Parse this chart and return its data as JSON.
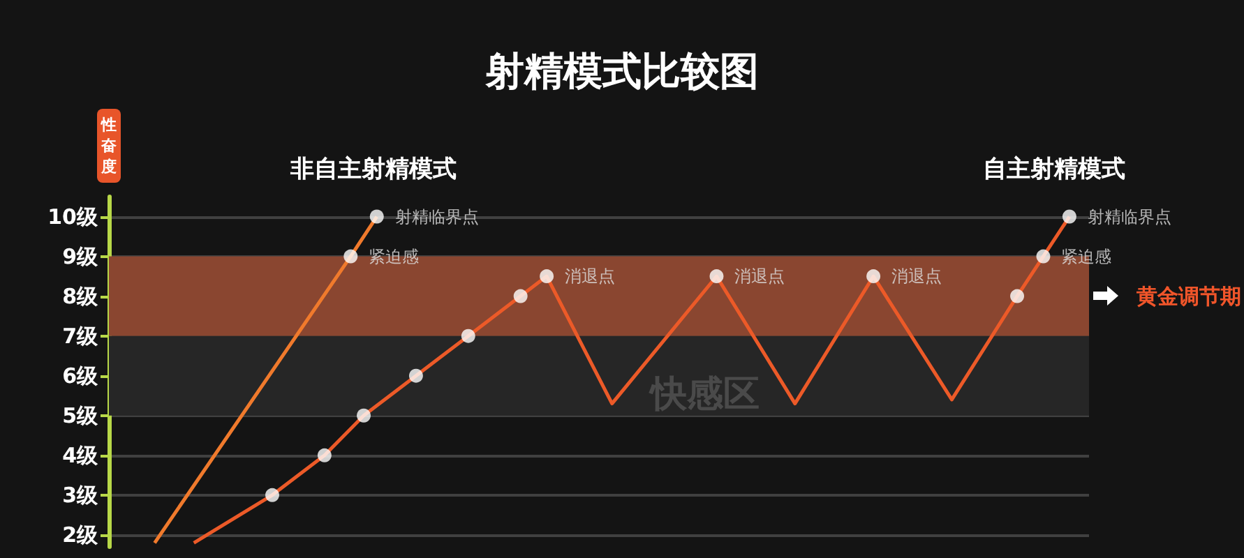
{
  "chart_data": {
    "type": "line",
    "title": "射精模式比较图",
    "ylabel": "性奋度",
    "categories": [
      null,
      null,
      null,
      null,
      null,
      null,
      null,
      null,
      null,
      null,
      null,
      null,
      null,
      null,
      null,
      null,
      null,
      null,
      null,
      null,
      null,
      null,
      null,
      null,
      null,
      null,
      null,
      null,
      null,
      null,
      null,
      null,
      null,
      null,
      null,
      null,
      null,
      null,
      null,
      null,
      null,
      null,
      null,
      null,
      null,
      null,
      null,
      null,
      null,
      null,
      null,
      null,
      null,
      null,
      null,
      null,
      null,
      null,
      null,
      null,
      null,
      null,
      null,
      null,
      null,
      null,
      null,
      null,
      null,
      null,
      null,
      null,
      null,
      null,
      null
    ],
    "series": [
      {
        "name": "非自主射精模式",
        "color": "#f07a2c",
        "values": [
          null,
          null,
          null,
          1.8,
          null,
          null,
          null,
          null,
          null,
          null,
          null,
          null,
          null,
          null,
          null,
          null,
          null,
          null,
          9,
          null,
          10,
          null,
          null,
          null,
          null,
          null,
          null,
          null,
          null,
          null,
          null,
          null,
          null,
          null,
          null,
          null,
          null,
          null,
          null,
          null,
          null,
          null,
          null,
          null,
          null,
          null,
          null,
          null,
          null,
          null,
          null,
          null,
          null,
          null,
          null,
          null,
          null,
          null,
          null,
          null,
          null,
          null,
          null,
          null,
          null,
          null,
          null,
          null,
          null,
          null,
          null,
          null,
          null,
          null,
          null
        ]
      },
      {
        "name": "自主射精模式",
        "color": "#ec5a28",
        "values": [
          null,
          null,
          null,
          null,
          null,
          null,
          1.8,
          null,
          null,
          null,
          null,
          null,
          3,
          null,
          null,
          null,
          4,
          null,
          null,
          5,
          null,
          null,
          null,
          6,
          null,
          null,
          null,
          7,
          null,
          null,
          null,
          8,
          null,
          8.5,
          null,
          null,
          null,
          null,
          5.3,
          null,
          null,
          null,
          null,
          null,
          null,
          null,
          8.5,
          null,
          null,
          null,
          null,
          null,
          5.3,
          null,
          null,
          null,
          null,
          null,
          8.5,
          null,
          null,
          null,
          null,
          null,
          5.4,
          null,
          null,
          null,
          null,
          8,
          null,
          9,
          null,
          10,
          null
        ]
      },
      {
        "type": "scatter",
        "color": "#ffffff",
        "values": [
          null,
          null,
          null,
          null,
          null,
          null,
          null,
          null,
          null,
          null,
          null,
          null,
          3,
          null,
          null,
          null,
          4,
          null,
          9,
          5,
          10,
          null,
          null,
          6,
          null,
          null,
          null,
          7,
          null,
          null,
          null,
          8,
          null,
          8.5,
          null,
          null,
          null,
          null,
          null,
          null,
          null,
          null,
          null,
          null,
          null,
          null,
          8.5,
          null,
          null,
          null,
          null,
          null,
          null,
          null,
          null,
          null,
          null,
          null,
          8.5,
          null,
          null,
          null,
          null,
          null,
          null,
          null,
          null,
          null,
          null,
          8,
          null,
          9,
          null,
          10,
          null
        ],
        "value_labels": [
          null,
          null,
          null,
          null,
          null,
          null,
          null,
          null,
          null,
          null,
          null,
          null,
          null,
          null,
          null,
          null,
          null,
          null,
          "紧迫感",
          null,
          "射精临界点",
          null,
          null,
          null,
          null,
          null,
          null,
          null,
          null,
          null,
          null,
          null,
          null,
          "消退点",
          null,
          null,
          null,
          null,
          null,
          null,
          null,
          null,
          null,
          null,
          null,
          null,
          "消退点",
          null,
          null,
          null,
          null,
          null,
          null,
          null,
          null,
          null,
          null,
          null,
          "消退点",
          null,
          null,
          null,
          null,
          null,
          null,
          null,
          null,
          null,
          null,
          null,
          null,
          "紧迫感",
          null,
          "射精临界点",
          null
        ]
      }
    ],
    "bands": [
      {
        "axis": "y",
        "from": 7,
        "to": 9,
        "label": "黄金调节期",
        "color": "#8a4630"
      },
      {
        "axis": "y",
        "from": 5,
        "to": 7,
        "label": "快感区",
        "color": "#262626"
      }
    ],
    "ylim": [
      1.7,
      10.5
    ],
    "yticks": [
      {
        "value": 2,
        "label": "2级"
      },
      {
        "value": 3,
        "label": "3级"
      },
      {
        "value": 4,
        "label": "4级"
      },
      {
        "value": 5,
        "label": "5级"
      },
      {
        "value": 6,
        "label": "6级"
      },
      {
        "value": 7,
        "label": "7级"
      },
      {
        "value": 8,
        "label": "8级"
      },
      {
        "value": 9,
        "label": "9级"
      },
      {
        "value": 10,
        "label": "10级"
      }
    ],
    "grid": "y",
    "legend": false
  }
}
